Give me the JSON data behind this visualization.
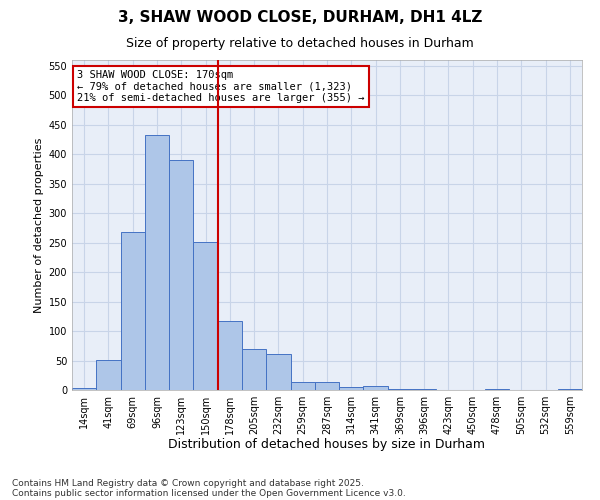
{
  "title_line1": "3, SHAW WOOD CLOSE, DURHAM, DH1 4LZ",
  "title_line2": "Size of property relative to detached houses in Durham",
  "xlabel": "Distribution of detached houses by size in Durham",
  "ylabel": "Number of detached properties",
  "categories": [
    "14sqm",
    "41sqm",
    "69sqm",
    "96sqm",
    "123sqm",
    "150sqm",
    "178sqm",
    "205sqm",
    "232sqm",
    "259sqm",
    "287sqm",
    "314sqm",
    "341sqm",
    "369sqm",
    "396sqm",
    "423sqm",
    "450sqm",
    "478sqm",
    "505sqm",
    "532sqm",
    "559sqm"
  ],
  "values": [
    3,
    51,
    268,
    433,
    391,
    251,
    117,
    70,
    61,
    13,
    13,
    5,
    6,
    1,
    1,
    0,
    0,
    1,
    0,
    0,
    1
  ],
  "bar_color": "#aec6e8",
  "bar_edge_color": "#4472c4",
  "grid_color": "#c8d4e8",
  "background_color": "#e8eef8",
  "vline_x_index": 6,
  "vline_color": "#cc0000",
  "annotation_text": "3 SHAW WOOD CLOSE: 170sqm\n← 79% of detached houses are smaller (1,323)\n21% of semi-detached houses are larger (355) →",
  "annotation_box_color": "#cc0000",
  "ylim": [
    0,
    560
  ],
  "yticks": [
    0,
    50,
    100,
    150,
    200,
    250,
    300,
    350,
    400,
    450,
    500,
    550
  ],
  "footnote_line1": "Contains HM Land Registry data © Crown copyright and database right 2025.",
  "footnote_line2": "Contains public sector information licensed under the Open Government Licence v3.0.",
  "title_fontsize": 11,
  "subtitle_fontsize": 9,
  "xlabel_fontsize": 9,
  "ylabel_fontsize": 8,
  "tick_fontsize": 7,
  "annot_fontsize": 7.5,
  "footnote_fontsize": 6.5
}
